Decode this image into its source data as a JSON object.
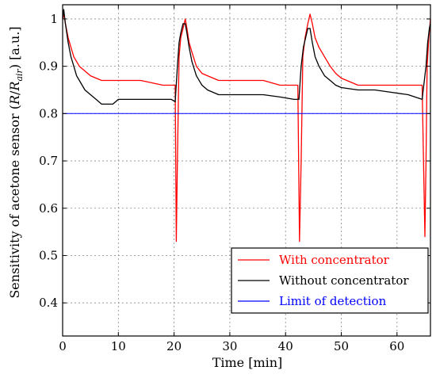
{
  "chart_data": {
    "type": "line",
    "xlabel": "Time [min]",
    "ylabel": "Sensitivity of acetone sensor (R/Rair) [a.u.]",
    "ylabel_parts": {
      "pre": "Sensitivity of acetone sensor (",
      "r": "R",
      "slash": "/",
      "r2": "R",
      "sub": "air",
      "post": ") [a.u.]"
    },
    "xlim": [
      0,
      66
    ],
    "ylim": [
      0.33,
      1.03
    ],
    "x_ticks": [
      0,
      10,
      20,
      30,
      40,
      50,
      60
    ],
    "y_ticks": [
      0.4,
      0.5,
      0.6,
      0.7,
      0.8,
      0.9,
      1
    ],
    "x_tick_labels": [
      "0",
      "10",
      "20",
      "30",
      "40",
      "50",
      "60"
    ],
    "y_tick_labels": [
      "0.4",
      "0.5",
      "0.6",
      "0.7",
      "0.8",
      "0.9",
      "1"
    ],
    "grid": true,
    "legend_position": "bottom-right",
    "series": [
      {
        "name": "With concentrator",
        "color": "#ff0000",
        "x": [
          0,
          0.2,
          0.5,
          1,
          1.5,
          2,
          3,
          4,
          5,
          6,
          7,
          8,
          10,
          12,
          14,
          16,
          18,
          19.5,
          20.2,
          20.4,
          20.6,
          20.9,
          21.2,
          21.6,
          22.0,
          22.3,
          22.7,
          23.2,
          24,
          25,
          26,
          28,
          30,
          33,
          36,
          39,
          41.5,
          42.2,
          42.5,
          42.8,
          43.1,
          43.5,
          44.0,
          44.4,
          44.8,
          45.3,
          46,
          47,
          48,
          49,
          50,
          53,
          56,
          59,
          62,
          64.5,
          65.0,
          65.2,
          65.4,
          65.7,
          66.0
        ],
        "values": [
          1.0,
          1.01,
          0.99,
          0.96,
          0.94,
          0.92,
          0.9,
          0.89,
          0.88,
          0.875,
          0.87,
          0.87,
          0.87,
          0.87,
          0.87,
          0.865,
          0.86,
          0.86,
          0.86,
          0.53,
          0.7,
          0.92,
          0.96,
          0.98,
          1.0,
          0.98,
          0.95,
          0.93,
          0.9,
          0.885,
          0.88,
          0.87,
          0.87,
          0.87,
          0.87,
          0.86,
          0.86,
          0.86,
          0.53,
          0.7,
          0.92,
          0.96,
          0.99,
          1.01,
          0.99,
          0.96,
          0.94,
          0.92,
          0.9,
          0.885,
          0.875,
          0.86,
          0.86,
          0.86,
          0.86,
          0.86,
          0.54,
          0.7,
          0.9,
          0.96,
          1.0
        ]
      },
      {
        "name": "Without concentrator",
        "color": "#000000",
        "x": [
          0,
          0.2,
          0.5,
          1,
          1.5,
          2,
          2.5,
          3,
          4,
          5,
          6,
          7,
          8,
          9,
          10,
          12,
          14,
          16,
          18,
          19.5,
          20.2,
          20.6,
          20.9,
          21.2,
          21.6,
          22.0,
          22.3,
          22.7,
          23.2,
          24,
          25,
          26,
          28,
          30,
          33,
          36,
          39,
          41.5,
          42.4,
          42.8,
          43.2,
          43.6,
          44.0,
          44.4,
          44.8,
          45.3,
          46,
          47,
          48,
          49,
          50,
          53,
          56,
          59,
          62,
          64.5,
          65.2,
          65.5,
          65.8,
          66.0
        ],
        "values": [
          1.0,
          1.02,
          0.99,
          0.95,
          0.92,
          0.9,
          0.88,
          0.87,
          0.85,
          0.84,
          0.83,
          0.82,
          0.82,
          0.82,
          0.83,
          0.83,
          0.83,
          0.83,
          0.83,
          0.83,
          0.825,
          0.9,
          0.95,
          0.97,
          0.99,
          0.99,
          0.97,
          0.94,
          0.91,
          0.88,
          0.86,
          0.85,
          0.84,
          0.84,
          0.84,
          0.84,
          0.835,
          0.83,
          0.83,
          0.9,
          0.94,
          0.96,
          0.98,
          0.98,
          0.95,
          0.92,
          0.9,
          0.88,
          0.87,
          0.86,
          0.855,
          0.85,
          0.85,
          0.845,
          0.84,
          0.83,
          0.9,
          0.95,
          0.98,
          0.99
        ]
      },
      {
        "name": "Limit of detection",
        "color": "#0000ff",
        "x": [
          0,
          66
        ],
        "values": [
          0.8,
          0.8
        ]
      }
    ]
  }
}
